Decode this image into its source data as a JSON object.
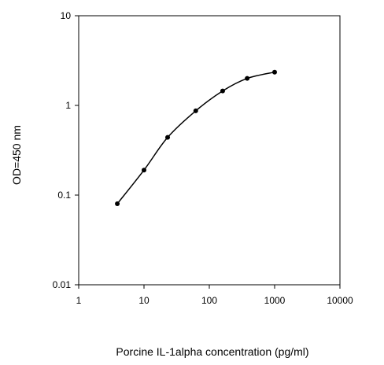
{
  "chart_data": {
    "type": "line",
    "title": "",
    "xlabel": "Porcine IL-1alpha concentration (pg/ml)",
    "ylabel": "OD=450 nm",
    "x_scale": "log",
    "y_scale": "log",
    "xlim": [
      1,
      10000
    ],
    "ylim": [
      0.01,
      10
    ],
    "x_ticks": [
      "1",
      "10",
      "100",
      "1000",
      "10000"
    ],
    "y_ticks": [
      "10",
      "1",
      "0.1",
      "0.01"
    ],
    "grid": false,
    "legend": "none",
    "series": [
      {
        "x": [
          3.9,
          10,
          23,
          62,
          160,
          380,
          1000
        ],
        "y": [
          0.08,
          0.19,
          0.44,
          0.87,
          1.45,
          2.0,
          2.35
        ]
      }
    ],
    "colors": {
      "line": "#000000",
      "axis": "#000000",
      "background": "#ffffff"
    }
  }
}
